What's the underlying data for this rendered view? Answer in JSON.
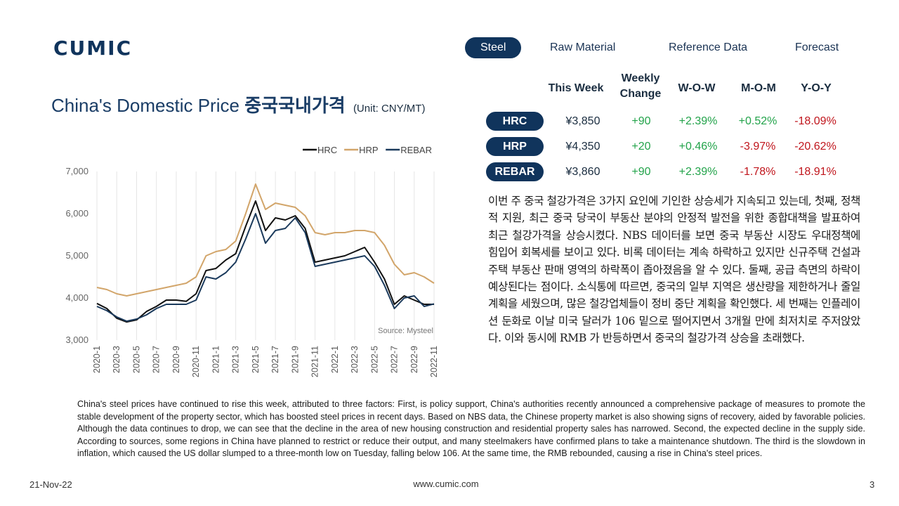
{
  "brand": {
    "logo_text": "CUMIC"
  },
  "nav": {
    "tabs": [
      "Steel",
      "Raw Material",
      "Reference Data",
      "Forecast"
    ],
    "active": "Steel"
  },
  "title": {
    "main": "China's Domestic Price",
    "korean": "중국국내가격",
    "unit": "(Unit: CNY/MT)"
  },
  "price_table": {
    "headers": {
      "this_week": "This Week",
      "weekly_change_1": "Weekly",
      "weekly_change_2": "Change",
      "wow": "W-O-W",
      "mom": "M-O-M",
      "yoy": "Y-O-Y"
    },
    "rows": [
      {
        "product": "HRC",
        "this_week": "¥3,850",
        "weekly_change": "+90",
        "wow": "+2.39%",
        "mom": "+0.52%",
        "yoy": "-18.09%"
      },
      {
        "product": "HRP",
        "this_week": "¥4,350",
        "weekly_change": "+20",
        "wow": "+0.46%",
        "mom": "-3.97%",
        "yoy": "-20.62%"
      },
      {
        "product": "REBAR",
        "this_week": "¥3,860",
        "weekly_change": "+90",
        "wow": "+2.39%",
        "mom": "-1.78%",
        "yoy": "-18.91%"
      }
    ],
    "colors": {
      "positive": "#22a34a",
      "negative": "#c0151c"
    }
  },
  "chart_data": {
    "type": "line",
    "x_start": "2020-1",
    "x_end": "2022-11",
    "xtick_labels": [
      "2020-1",
      "2020-3",
      "2020-5",
      "2020-7",
      "2020-9",
      "2020-11",
      "2021-1",
      "2021-3",
      "2021-5",
      "2021-7",
      "2021-9",
      "2021-11",
      "2022-1",
      "2022-3",
      "2022-5",
      "2022-7",
      "2022-9",
      "2022-11"
    ],
    "ylim": [
      3000,
      7000
    ],
    "yticks": [
      3000,
      4000,
      5000,
      6000,
      7000
    ],
    "ytick_labels": [
      "3,000",
      "4,000",
      "5,000",
      "6,000",
      "7,000"
    ],
    "grid_y": false,
    "grid_x": true,
    "legend_position": "top",
    "source_note": "Source: Mysteel",
    "series": [
      {
        "name": "HRC",
        "color": "#111111",
        "points": [
          [
            "2020-01",
            3870
          ],
          [
            "2020-02",
            3750
          ],
          [
            "2020-03",
            3520
          ],
          [
            "2020-04",
            3430
          ],
          [
            "2020-05",
            3480
          ],
          [
            "2020-06",
            3680
          ],
          [
            "2020-07",
            3800
          ],
          [
            "2020-08",
            3950
          ],
          [
            "2020-09",
            3950
          ],
          [
            "2020-10",
            3920
          ],
          [
            "2020-11",
            4100
          ],
          [
            "2020-12",
            4650
          ],
          [
            "2021-01",
            4700
          ],
          [
            "2021-02",
            4900
          ],
          [
            "2021-03",
            5050
          ],
          [
            "2021-04",
            5700
          ],
          [
            "2021-05",
            6300
          ],
          [
            "2021-06",
            5600
          ],
          [
            "2021-07",
            5900
          ],
          [
            "2021-08",
            5850
          ],
          [
            "2021-09",
            5950
          ],
          [
            "2021-10",
            5650
          ],
          [
            "2021-11",
            4850
          ],
          [
            "2021-12",
            4900
          ],
          [
            "2022-01",
            4950
          ],
          [
            "2022-02",
            5000
          ],
          [
            "2022-03",
            5100
          ],
          [
            "2022-04",
            5200
          ],
          [
            "2022-05",
            4850
          ],
          [
            "2022-06",
            4450
          ],
          [
            "2022-07",
            3850
          ],
          [
            "2022-08",
            4050
          ],
          [
            "2022-09",
            3950
          ],
          [
            "2022-10",
            3850
          ],
          [
            "2022-11",
            3850
          ]
        ]
      },
      {
        "name": "HRP",
        "color": "#d2a56a",
        "points": [
          [
            "2020-01",
            4250
          ],
          [
            "2020-02",
            4200
          ],
          [
            "2020-03",
            4100
          ],
          [
            "2020-04",
            4050
          ],
          [
            "2020-05",
            4100
          ],
          [
            "2020-06",
            4150
          ],
          [
            "2020-07",
            4200
          ],
          [
            "2020-08",
            4250
          ],
          [
            "2020-09",
            4300
          ],
          [
            "2020-10",
            4350
          ],
          [
            "2020-11",
            4500
          ],
          [
            "2020-12",
            5000
          ],
          [
            "2021-01",
            5100
          ],
          [
            "2021-02",
            5150
          ],
          [
            "2021-03",
            5350
          ],
          [
            "2021-04",
            6000
          ],
          [
            "2021-05",
            6700
          ],
          [
            "2021-06",
            6100
          ],
          [
            "2021-07",
            6250
          ],
          [
            "2021-08",
            6200
          ],
          [
            "2021-09",
            6150
          ],
          [
            "2021-10",
            5950
          ],
          [
            "2021-11",
            5550
          ],
          [
            "2021-12",
            5500
          ],
          [
            "2022-01",
            5550
          ],
          [
            "2022-02",
            5550
          ],
          [
            "2022-03",
            5600
          ],
          [
            "2022-04",
            5600
          ],
          [
            "2022-05",
            5550
          ],
          [
            "2022-06",
            5250
          ],
          [
            "2022-07",
            4800
          ],
          [
            "2022-08",
            4550
          ],
          [
            "2022-09",
            4600
          ],
          [
            "2022-10",
            4500
          ],
          [
            "2022-11",
            4350
          ]
        ]
      },
      {
        "name": "REBAR",
        "color": "#1b3a5c",
        "points": [
          [
            "2020-01",
            3800
          ],
          [
            "2020-02",
            3700
          ],
          [
            "2020-03",
            3550
          ],
          [
            "2020-04",
            3450
          ],
          [
            "2020-05",
            3500
          ],
          [
            "2020-06",
            3600
          ],
          [
            "2020-07",
            3750
          ],
          [
            "2020-08",
            3850
          ],
          [
            "2020-09",
            3850
          ],
          [
            "2020-10",
            3850
          ],
          [
            "2020-11",
            3950
          ],
          [
            "2020-12",
            4500
          ],
          [
            "2021-01",
            4450
          ],
          [
            "2021-02",
            4600
          ],
          [
            "2021-03",
            4850
          ],
          [
            "2021-04",
            5400
          ],
          [
            "2021-05",
            6000
          ],
          [
            "2021-06",
            5300
          ],
          [
            "2021-07",
            5600
          ],
          [
            "2021-08",
            5650
          ],
          [
            "2021-09",
            5900
          ],
          [
            "2021-10",
            5550
          ],
          [
            "2021-11",
            4750
          ],
          [
            "2021-12",
            4800
          ],
          [
            "2022-01",
            4850
          ],
          [
            "2022-02",
            4900
          ],
          [
            "2022-03",
            4950
          ],
          [
            "2022-04",
            5000
          ],
          [
            "2022-05",
            4750
          ],
          [
            "2022-06",
            4300
          ],
          [
            "2022-07",
            3750
          ],
          [
            "2022-08",
            4000
          ],
          [
            "2022-09",
            4050
          ],
          [
            "2022-10",
            3800
          ],
          [
            "2022-11",
            3860
          ]
        ]
      }
    ]
  },
  "korean_text": "이번 주 중국 철강가격은 3가지 요인에 기인한 상승세가 지속되고 있는데, 첫째, 정책적 지원, 최근 중국 당국이 부동산 분야의 안정적 발전을 위한 종합대책을 발표하여 최근 철강가격을 상승시켰다. NBS 데이터를 보면 중국 부동산 시장도 우대정책에 힘입어 회복세를 보이고 있다. 비록 데이터는 계속 하락하고 있지만 신규주택 건설과 주택 부동산 판매 영역의 하락폭이 좁아졌음을 알 수 있다. 둘째, 공급 측면의 하락이 예상된다는 점이다. 소식통에 따르면, 중국의 일부 지역은 생산량을 제한하거나 줄일 계획을 세웠으며, 많은 철강업체들이 정비 중단 계획을 확인했다. 세 번째는 인플레이션 둔화로 이날 미국 달러가 106 밑으로 떨어지면서 3개월 만에 최저치로 주저앉았다. 이와 동시에 RMB 가 반등하면서 중국의 철강가격 상승을 초래했다.",
  "english_text": "China's steel prices have continued to rise this week, attributed to three factors: First, is policy support, China's authorities recently announced a comprehensive package of measures to promote the stable development of the property sector, which has boosted steel prices in recent days. Based on NBS data, the Chinese property market is also showing signs of recovery, aided by favorable policies. Although the data continues to drop, we can see that the decline in the area of new housing construction and residential property sales has narrowed. Second, the expected decline in the supply side. According to sources, some regions in China have planned to restrict or reduce their output, and many steelmakers have confirmed plans to take a maintenance shutdown. The third is the slowdown in inflation, which caused the US dollar slumped to a three-month low on Tuesday, falling below 106. At the same time, the RMB rebounded, causing a rise in China's steel prices.",
  "footer": {
    "date": "21-Nov-22",
    "url": "www.cumic.com",
    "page": "3"
  }
}
